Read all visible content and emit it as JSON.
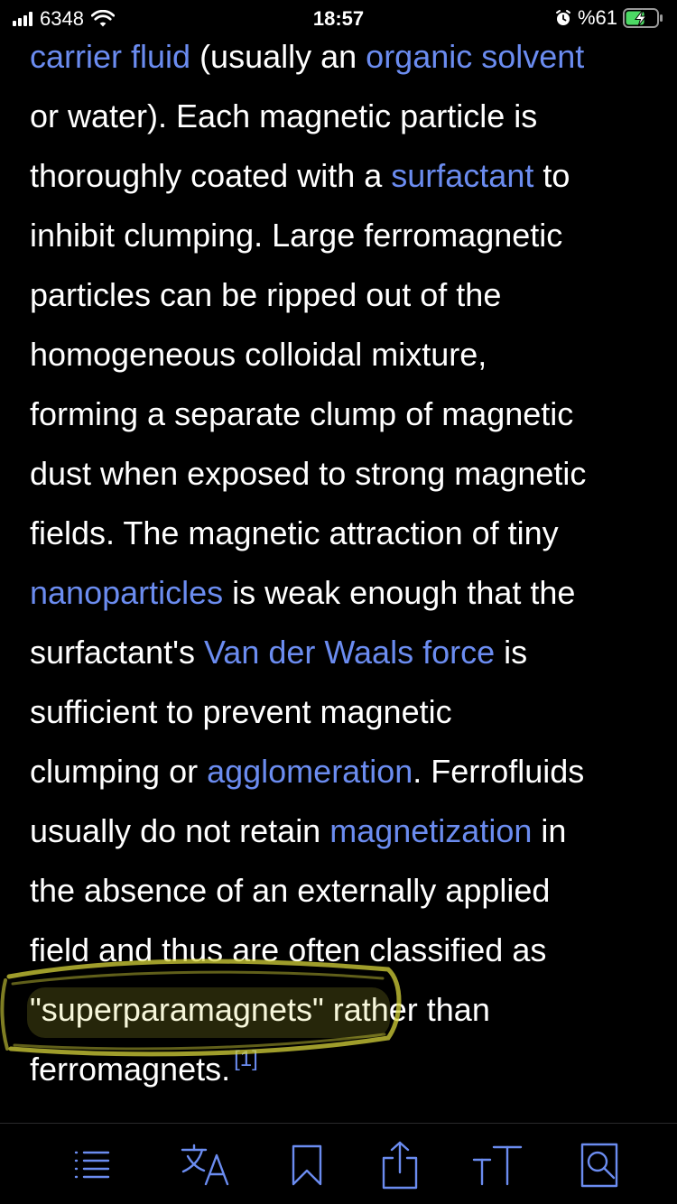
{
  "status_bar": {
    "carrier": "6348",
    "time": "18:57",
    "battery_percent": "%61",
    "battery_level": 0.61,
    "charging": true
  },
  "article": {
    "lines": [
      [
        {
          "text": "carrier fluid",
          "link": true
        },
        {
          "text": " (usually an "
        },
        {
          "text": "organic solvent",
          "link": true
        }
      ],
      [
        {
          "text": "or water). Each magnetic particle is"
        }
      ],
      [
        {
          "text": "thoroughly coated with a "
        },
        {
          "text": "surfactant",
          "link": true
        },
        {
          "text": " to"
        }
      ],
      [
        {
          "text": "inhibit clumping. Large ferromagnetic"
        }
      ],
      [
        {
          "text": "particles can be ripped out of the"
        }
      ],
      [
        {
          "text": "homogeneous colloidal mixture,"
        }
      ],
      [
        {
          "text": "forming a separate clump of magnetic"
        }
      ],
      [
        {
          "text": "dust when exposed to strong magnetic"
        }
      ],
      [
        {
          "text": "fields. The magnetic attraction of tiny"
        }
      ],
      [
        {
          "text": "nanoparticles",
          "link": true
        },
        {
          "text": " is weak enough that the"
        }
      ],
      [
        {
          "text": "surfactant's "
        },
        {
          "text": "Van der Waals force",
          "link": true
        },
        {
          "text": " is"
        }
      ],
      [
        {
          "text": "sufficient to prevent magnetic"
        }
      ],
      [
        {
          "text": "clumping or "
        },
        {
          "text": "agglomeration",
          "link": true
        },
        {
          "text": ". Ferrofluids"
        }
      ],
      [
        {
          "text": "usually do not retain "
        },
        {
          "text": "magnetization",
          "link": true
        },
        {
          "text": " in"
        }
      ],
      [
        {
          "text": "the absence of an externally applied"
        }
      ],
      [
        {
          "text": "field and thus are often classified as"
        }
      ],
      [
        {
          "text": "\"superparamagnets\" rather than"
        }
      ],
      [
        {
          "text": "ferromagnets."
        },
        {
          "text": "[1]",
          "ref": true
        }
      ]
    ]
  },
  "toolbar": {
    "items": [
      {
        "name": "contents",
        "icon": "list-icon"
      },
      {
        "name": "language",
        "icon": "translate-icon"
      },
      {
        "name": "save",
        "icon": "bookmark-icon"
      },
      {
        "name": "share",
        "icon": "share-icon"
      },
      {
        "name": "text-size",
        "icon": "text-size-icon"
      },
      {
        "name": "find",
        "icon": "find-in-page-icon"
      }
    ]
  },
  "colors": {
    "background": "#000000",
    "text": "#ffffff",
    "link": "#6b8cf0",
    "highlight": "#d4d23a",
    "toolbar_icon": "#6b8cf0"
  }
}
